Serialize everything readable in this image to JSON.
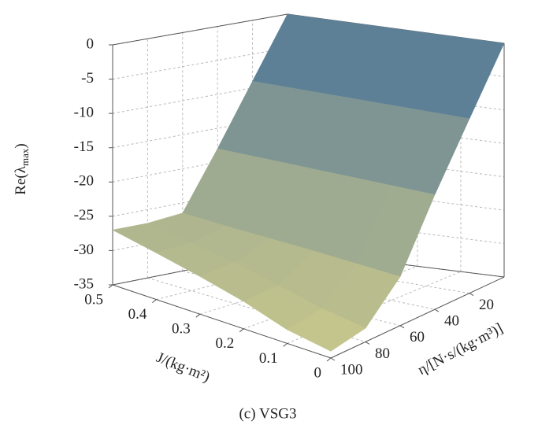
{
  "chart_data": {
    "type": "surface3d",
    "caption": "(c) VSG3",
    "xlabel": "J/(kg·m²)",
    "ylabel": "η/[N·s/(kg·m³)]",
    "zlabel": {
      "main": "Re(λ",
      "sub": "max",
      "end": ")"
    },
    "x": [
      0,
      0.1,
      0.2,
      0.3,
      0.4,
      0.5
    ],
    "y": [
      0,
      20,
      40,
      60,
      80,
      100
    ],
    "z": [
      [
        0,
        -9,
        -18,
        -27.8,
        -33,
        -34
      ],
      [
        0,
        -9,
        -18,
        -27.5,
        -32,
        -33
      ],
      [
        0,
        -9,
        -18,
        -27.2,
        -30.5,
        -31
      ],
      [
        0,
        -9,
        -18,
        -27,
        -29,
        -29.5
      ],
      [
        0,
        -9,
        -18,
        -26.8,
        -28,
        -28.2
      ],
      [
        0,
        -9,
        -18,
        -26.5,
        -27,
        -27
      ]
    ],
    "xlim": [
      0,
      0.5
    ],
    "ylim": [
      0,
      100
    ],
    "zlim": [
      -35,
      0
    ],
    "xticks": [
      0,
      0.1,
      0.2,
      0.3,
      0.4,
      0.5
    ],
    "yticks": [
      20,
      40,
      60,
      80,
      100
    ],
    "zticks": [
      -35,
      -30,
      -25,
      -20,
      -15,
      -10,
      -5,
      0
    ],
    "colormap": [
      "#cbc98c",
      "#4e7598"
    ],
    "grid": true
  }
}
